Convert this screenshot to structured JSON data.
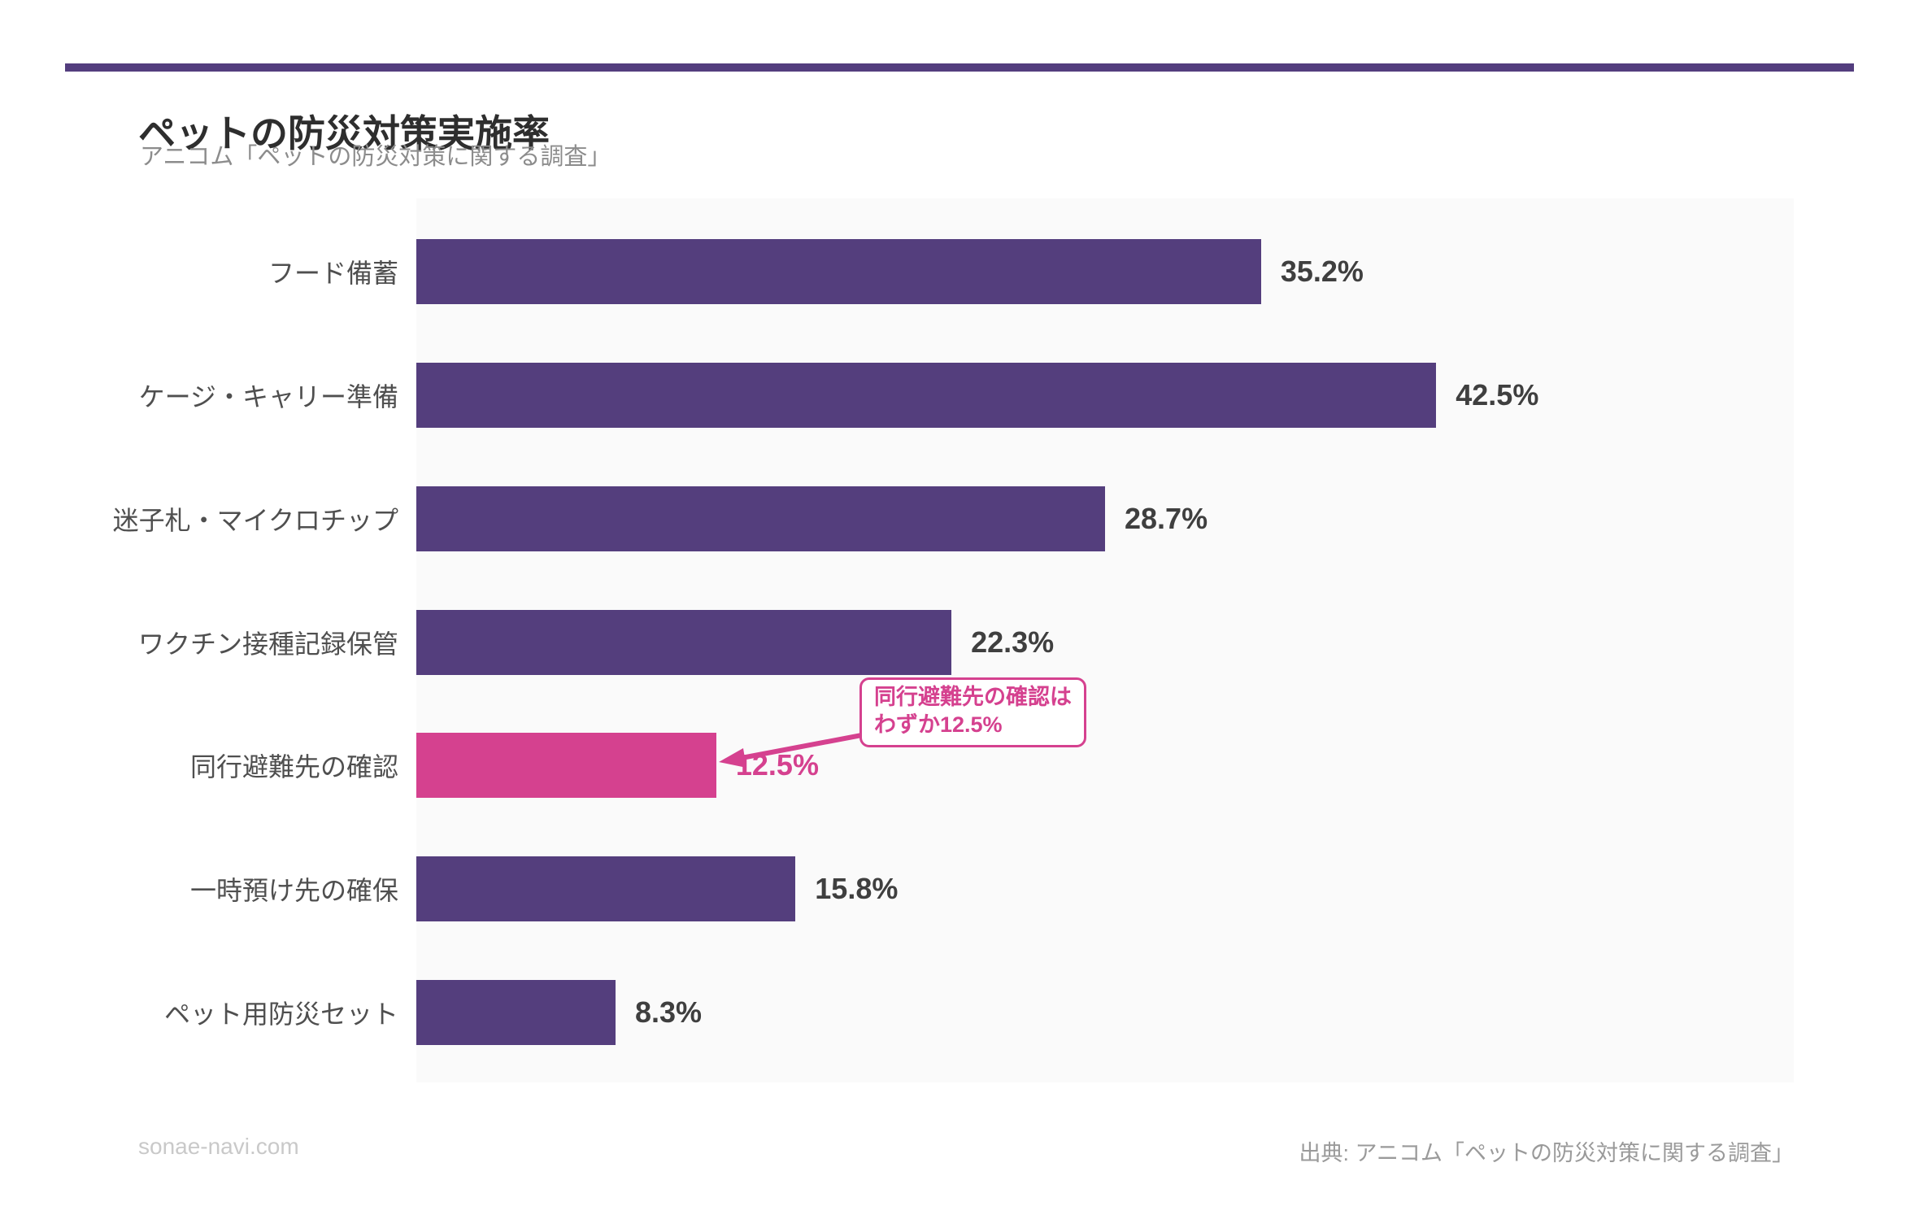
{
  "page": {
    "title": "ペットの防災対策実施率",
    "subtitle": "アニコム「ペットの防災対策に関する調査」",
    "footer_left": "sonae-navi.com",
    "footer_right": "出典: アニコム「ペットの防災対策に関する調査」"
  },
  "colors": {
    "top_rule": "#533d7e",
    "bar_purple": "#543e7d",
    "bar_highlight_pink": "#d5418f",
    "plot_background": "#fafafa",
    "value_label": "#3f3f3f",
    "category_label": "#4f4f4f"
  },
  "annotation": {
    "line1": "同行避難先の確認は",
    "line2": "わずか12.5%"
  },
  "chart_data": {
    "type": "bar",
    "orientation": "horizontal",
    "title": "ペットの防災対策実施率",
    "subtitle": "アニコム「ペットの防災対策に関する調査」",
    "categories": [
      "フード備蓄",
      "ケージ・キャリー準備",
      "迷子札・マイクロチップ",
      "ワクチン接種記録保管",
      "同行避難先の確認",
      "一時預け先の確保",
      "ペット用防災セット"
    ],
    "values": [
      35.2,
      42.5,
      28.7,
      22.3,
      12.5,
      15.8,
      8.3
    ],
    "value_labels": [
      "35.2%",
      "42.5%",
      "28.7%",
      "22.3%",
      "12.5%",
      "15.8%",
      "8.3%"
    ],
    "unit": "%",
    "highlight_index": 4,
    "highlight_annotation": "同行避難先の確認はわずか12.5%",
    "xlim": [
      0,
      57.4
    ],
    "grid": false,
    "legend": false,
    "source": "出典: アニコム「ペットの防災対策に関する調査」"
  }
}
